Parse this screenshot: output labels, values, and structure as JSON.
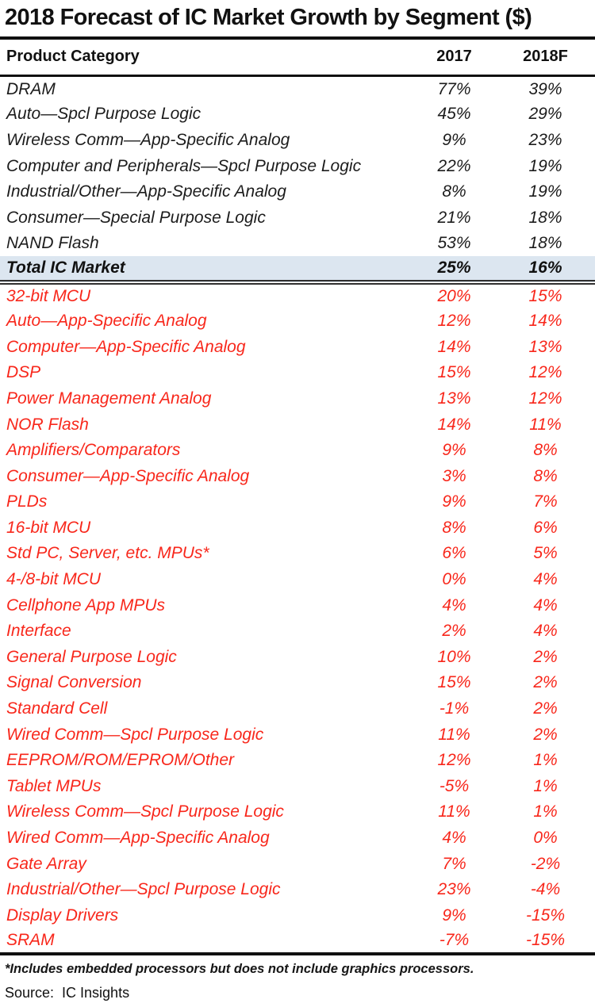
{
  "title": "2018 Forecast of IC Market Growth by Segment ($)",
  "footnote": "*Includes embedded processors but does not include graphics processors.",
  "source": "Source:  IC Insights",
  "colors": {
    "above_market_text": "#1c1c1c",
    "below_market_text": "#f8271b",
    "total_row_bg": "#dce6f0",
    "rule": "#101010"
  },
  "chart_data": {
    "type": "table",
    "title": "2018 Forecast of IC Market Growth by Segment ($)",
    "columns": [
      "Product Category",
      "2017",
      "2018F"
    ],
    "rows": [
      {
        "label": "DRAM",
        "y2017": "77%",
        "y2018f": "39%",
        "group": "above-market"
      },
      {
        "label": "Auto—Spcl Purpose Logic",
        "y2017": "45%",
        "y2018f": "29%",
        "group": "above-market"
      },
      {
        "label": "Wireless Comm—App-Specific Analog",
        "y2017": "9%",
        "y2018f": "23%",
        "group": "above-market"
      },
      {
        "label": "Computer and Peripherals—Spcl Purpose Logic",
        "y2017": "22%",
        "y2018f": "19%",
        "group": "above-market"
      },
      {
        "label": "Industrial/Other—App-Specific Analog",
        "y2017": "8%",
        "y2018f": "19%",
        "group": "above-market"
      },
      {
        "label": "Consumer—Special Purpose Logic",
        "y2017": "21%",
        "y2018f": "18%",
        "group": "above-market"
      },
      {
        "label": "NAND Flash",
        "y2017": "53%",
        "y2018f": "18%",
        "group": "above-market"
      },
      {
        "label": "Total IC Market",
        "y2017": "25%",
        "y2018f": "16%",
        "group": "total"
      },
      {
        "label": "32-bit MCU",
        "y2017": "20%",
        "y2018f": "15%",
        "group": "below-market"
      },
      {
        "label": "Auto—App-Specific Analog",
        "y2017": "12%",
        "y2018f": "14%",
        "group": "below-market"
      },
      {
        "label": "Computer—App-Specific Analog",
        "y2017": "14%",
        "y2018f": "13%",
        "group": "below-market"
      },
      {
        "label": "DSP",
        "y2017": "15%",
        "y2018f": "12%",
        "group": "below-market"
      },
      {
        "label": "Power Management Analog",
        "y2017": "13%",
        "y2018f": "12%",
        "group": "below-market"
      },
      {
        "label": "NOR Flash",
        "y2017": "14%",
        "y2018f": "11%",
        "group": "below-market"
      },
      {
        "label": "Amplifiers/Comparators",
        "y2017": "9%",
        "y2018f": "8%",
        "group": "below-market"
      },
      {
        "label": "Consumer—App-Specific Analog",
        "y2017": "3%",
        "y2018f": "8%",
        "group": "below-market"
      },
      {
        "label": "PLDs",
        "y2017": "9%",
        "y2018f": "7%",
        "group": "below-market"
      },
      {
        "label": "16-bit MCU",
        "y2017": "8%",
        "y2018f": "6%",
        "group": "below-market"
      },
      {
        "label": "Std PC, Server, etc. MPUs*",
        "y2017": "6%",
        "y2018f": "5%",
        "group": "below-market"
      },
      {
        "label": "4-/8-bit MCU",
        "y2017": "0%",
        "y2018f": "4%",
        "group": "below-market"
      },
      {
        "label": "Cellphone App MPUs",
        "y2017": "4%",
        "y2018f": "4%",
        "group": "below-market"
      },
      {
        "label": "Interface",
        "y2017": "2%",
        "y2018f": "4%",
        "group": "below-market"
      },
      {
        "label": "General Purpose Logic",
        "y2017": "10%",
        "y2018f": "2%",
        "group": "below-market"
      },
      {
        "label": "Signal Conversion",
        "y2017": "15%",
        "y2018f": "2%",
        "group": "below-market"
      },
      {
        "label": "Standard Cell",
        "y2017": "-1%",
        "y2018f": "2%",
        "group": "below-market"
      },
      {
        "label": "Wired Comm—Spcl Purpose Logic",
        "y2017": "11%",
        "y2018f": "2%",
        "group": "below-market"
      },
      {
        "label": "EEPROM/ROM/EPROM/Other",
        "y2017": "12%",
        "y2018f": "1%",
        "group": "below-market"
      },
      {
        "label": "Tablet MPUs",
        "y2017": "-5%",
        "y2018f": "1%",
        "group": "below-market"
      },
      {
        "label": "Wireless Comm—Spcl Purpose Logic",
        "y2017": "11%",
        "y2018f": "1%",
        "group": "below-market"
      },
      {
        "label": "Wired Comm—App-Specific Analog",
        "y2017": "4%",
        "y2018f": "0%",
        "group": "below-market"
      },
      {
        "label": "Gate Array",
        "y2017": "7%",
        "y2018f": "-2%",
        "group": "below-market"
      },
      {
        "label": "Industrial/Other—Spcl Purpose Logic",
        "y2017": "23%",
        "y2018f": "-4%",
        "group": "below-market"
      },
      {
        "label": "Display Drivers",
        "y2017": "9%",
        "y2018f": "-15%",
        "group": "below-market"
      },
      {
        "label": "SRAM",
        "y2017": "-7%",
        "y2018f": "-15%",
        "group": "below-market"
      }
    ]
  }
}
